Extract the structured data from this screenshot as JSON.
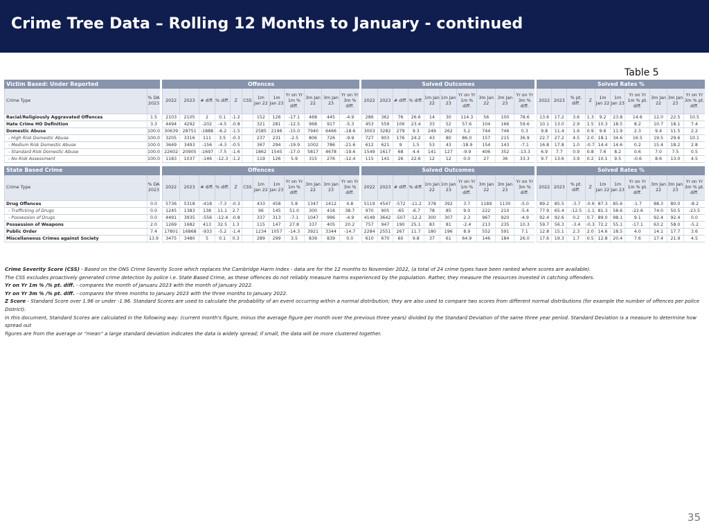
{
  "title": "Crime Tree Data – Rolling 12 Months to January - continued",
  "table_label": "Table 5",
  "page_number": "35",
  "group_headers": {
    "offences": "Offences",
    "solved_outcomes": "Solved Outcomes",
    "solved_rates": "Solved Rates %"
  },
  "headers": {
    "crime_type": "Crime Type",
    "pct_da": "% DA 2023",
    "offences": [
      "2022",
      "2023",
      "# diff.",
      "% diff.",
      "Z",
      "CSS",
      "1m Jan 22",
      "1m Jan 23",
      "Yr on Yr 1m % diff.",
      "3m Jan 22",
      "3m Jan 23",
      "Yr on Yr 3m % diff."
    ],
    "solved": [
      "2022",
      "2023",
      "# diff.",
      "% diff.",
      "1m Jan 22",
      "1m Jan 23",
      "Yr on Yr 1m % diff.",
      "3m Jan 22",
      "3m Jan 23",
      "Yr on Yr 3m % diff."
    ],
    "rates": [
      "2022",
      "2023",
      "% pt. diff.",
      "Z",
      "1m Jan 22",
      "1m Jan 23",
      "Yr on Yr 1m % pt. diff.",
      "3m Jan 22",
      "3m Jan 23",
      "Yr on Yr 3m % pt. diff."
    ]
  },
  "sections": [
    {
      "name": "Victim Based: Under Reported",
      "rows": [
        {
          "label": "Racial/Religiously Aggravated Offences",
          "style": "bold",
          "cells": [
            "1.5",
            "2103",
            "2105",
            "2",
            "0.1",
            "-1.2",
            "",
            "152",
            "126",
            "-17.1",
            "468",
            "445",
            "-4.9",
            "286",
            "362",
            "76",
            "26.6",
            "14",
            "30",
            "114.3",
            "56",
            "100",
            "78.6",
            "13.6",
            "17.2",
            "3.6",
            "1.3",
            "9.2",
            "23.8",
            "14.6",
            "12.0",
            "22.5",
            "10.5"
          ]
        },
        {
          "label": "Hate Crime HO Definition",
          "style": "bold",
          "cells": [
            "3.3",
            "4494",
            "4292",
            "-202",
            "-4.5",
            "-0.8",
            "",
            "321",
            "281",
            "-12.5",
            "968",
            "917",
            "-5.3",
            "453",
            "559",
            "106",
            "23.4",
            "33",
            "52",
            "57.6",
            "104",
            "166",
            "59.6",
            "10.1",
            "13.0",
            "2.9",
            "1.5",
            "10.3",
            "18.5",
            "8.2",
            "10.7",
            "18.1",
            "7.4"
          ]
        },
        {
          "label": "Domestic Abuse",
          "style": "bold",
          "cells": [
            "100.0",
            "30639",
            "28751",
            "-1888",
            "-6.2",
            "-1.5",
            "",
            "2585",
            "2196",
            "-15.0",
            "7940",
            "6466",
            "-18.6",
            "3003",
            "3282",
            "279",
            "9.3",
            "249",
            "262",
            "5.2",
            "744",
            "746",
            "0.3",
            "9.8",
            "11.4",
            "1.6",
            "0.9",
            "9.6",
            "11.9",
            "2.3",
            "9.4",
            "11.5",
            "2.2"
          ]
        },
        {
          "label": "- High Risk Domestic Abuse",
          "style": "sub",
          "cells": [
            "100.0",
            "3205",
            "3316",
            "111",
            "3.5",
            "-0.3",
            "",
            "237",
            "231",
            "-2.5",
            "806",
            "726",
            "-9.9",
            "727",
            "903",
            "176",
            "24.2",
            "43",
            "80",
            "86.0",
            "157",
            "215",
            "36.9",
            "22.7",
            "27.2",
            "4.5",
            "2.0",
            "18.1",
            "34.6",
            "16.5",
            "19.5",
            "29.6",
            "10.1"
          ]
        },
        {
          "label": "- Medium Risk Domestic Abuse",
          "style": "sub",
          "cells": [
            "100.0",
            "3649",
            "3493",
            "-156",
            "-4.3",
            "-0.5",
            "",
            "367",
            "294",
            "-19.9",
            "1002",
            "786",
            "-21.6",
            "612",
            "621",
            "9",
            "1.5",
            "53",
            "43",
            "-18.9",
            "154",
            "143",
            "-7.1",
            "16.8",
            "17.8",
            "1.0",
            "-0.7",
            "14.4",
            "14.6",
            "0.2",
            "15.4",
            "18.2",
            "2.8"
          ]
        },
        {
          "label": "- Standard Risk Domestic Abuse",
          "style": "sub",
          "cells": [
            "100.0",
            "22602",
            "20905",
            "-1697",
            "-7.5",
            "-1.6",
            "",
            "1862",
            "1545",
            "-17.0",
            "5817",
            "4678",
            "-19.6",
            "1549",
            "1617",
            "68",
            "4.4",
            "141",
            "127",
            "-9.9",
            "406",
            "352",
            "-13.3",
            "6.9",
            "7.7",
            "0.9",
            "0.8",
            "7.6",
            "8.2",
            "0.6",
            "7.0",
            "7.5",
            "0.5"
          ]
        },
        {
          "label": "- No Risk Assessment",
          "style": "sub",
          "cells": [
            "100.0",
            "1183",
            "1037",
            "-146",
            "-12.3",
            "-1.2",
            "",
            "119",
            "126",
            "5.9",
            "315",
            "276",
            "-12.4",
            "115",
            "141",
            "26",
            "22.6",
            "12",
            "12",
            "0.0",
            "27",
            "36",
            "33.3",
            "9.7",
            "13.6",
            "3.9",
            "0.2",
            "10.1",
            "9.5",
            "-0.6",
            "8.6",
            "13.0",
            "4.5"
          ]
        }
      ]
    },
    {
      "name": "State Based Crime",
      "rows": [
        {
          "label": "Drug Offences",
          "style": "bold",
          "cells": [
            "0.0",
            "5736",
            "5318",
            "-418",
            "-7.3",
            "-0.3",
            "",
            "433",
            "458",
            "5.8",
            "1347",
            "1412",
            "4.8",
            "5119",
            "4547",
            "-572",
            "-11.2",
            "378",
            "392",
            "3.7",
            "1189",
            "1130",
            "-5.0",
            "89.2",
            "85.5",
            "-3.7",
            "-0.6",
            "87.3",
            "85.6",
            "-1.7",
            "88.3",
            "80.0",
            "-8.2"
          ]
        },
        {
          "label": "- Trafficking of Drugs",
          "style": "sub",
          "cells": [
            "0.0",
            "1245",
            "1383",
            "138",
            "11.1",
            "2.7",
            "",
            "96",
            "145",
            "51.0",
            "300",
            "416",
            "38.7",
            "970",
            "905",
            "-65",
            "-6.7",
            "78",
            "85",
            "9.0",
            "222",
            "210",
            "-5.4",
            "77.9",
            "65.4",
            "-12.5",
            "-1.1",
            "81.3",
            "58.6",
            "-22.6",
            "74.0",
            "50.5",
            "-23.5"
          ]
        },
        {
          "label": "- Possession of Drugs",
          "style": "sub",
          "cells": [
            "0.0",
            "4491",
            "3935",
            "-556",
            "-12.4",
            "-0.8",
            "",
            "337",
            "313",
            "-7.1",
            "1047",
            "996",
            "-4.9",
            "4149",
            "3642",
            "-507",
            "-12.2",
            "300",
            "307",
            "2.3",
            "967",
            "920",
            "-4.9",
            "92.4",
            "92.6",
            "0.2",
            "0.7",
            "89.0",
            "98.1",
            "9.1",
            "92.4",
            "92.4",
            "0.0"
          ]
        },
        {
          "label": "Possession of Weapons",
          "style": "bold",
          "cells": [
            "2.0",
            "1269",
            "1682",
            "413",
            "32.5",
            "1.3",
            "",
            "115",
            "147",
            "27.8",
            "337",
            "405",
            "20.2",
            "757",
            "947",
            "190",
            "25.1",
            "83",
            "81",
            "-2.4",
            "213",
            "235",
            "10.3",
            "59.7",
            "56.3",
            "-3.4",
            "-0.3",
            "72.2",
            "55.1",
            "-17.1",
            "63.2",
            "58.0",
            "-5.2"
          ]
        },
        {
          "label": "Public Order",
          "style": "bold",
          "cells": [
            "7.4",
            "17801",
            "16868",
            "-933",
            "-5.2",
            "-1.4",
            "",
            "1234",
            "1057",
            "-14.3",
            "3921",
            "3344",
            "-14.7",
            "2284",
            "2551",
            "267",
            "11.7",
            "180",
            "196",
            "8.9",
            "552",
            "591",
            "7.1",
            "12.8",
            "15.1",
            "2.3",
            "2.0",
            "14.6",
            "18.5",
            "4.0",
            "14.1",
            "17.7",
            "3.6"
          ]
        },
        {
          "label": "Miscellaneous Crimes against Society",
          "style": "bold",
          "cells": [
            "13.9",
            "3475",
            "3480",
            "5",
            "0.1",
            "0.3",
            "",
            "289",
            "299",
            "3.5",
            "839",
            "839",
            "0.0",
            "610",
            "670",
            "60",
            "9.8",
            "37",
            "61",
            "64.9",
            "146",
            "184",
            "26.0",
            "17.6",
            "19.3",
            "1.7",
            "0.5",
            "12.8",
            "20.4",
            "7.6",
            "17.4",
            "21.9",
            "4.5"
          ]
        }
      ]
    }
  ],
  "notes": {
    "css_term": "Crime Severity Score (CSS)",
    "css_text": " - Based on the ONS Crime Severity Score which replaces the Cambridge Harm Index - data are for the 12 months to November 2022, (a total of 24 crime types have been ranked where scores are available).",
    "css_line2": "The CSS excludes proactively generated crime detection by police i.e. State Based Crime, as these offences do not reliably measure harms experienced by the population. Rather, they measure the resources invested in catching offenders.",
    "yoy1m_term": "Yr on Yr 1m % /% pt. diff.",
    "yoy1m_text": " - compares the month of Januaru 2023 with the month of January 2022.",
    "yoy3m_term": "Yr on Yr 3m % /% pt. diff.",
    "yoy3m_text": " - compares the three months to January 2023 with the three months to January 2022.",
    "z_term": "Z Score",
    "z_text": " - Standard Score over 1.96 or under -1.96.  Standard Scores are used to calculate the probability of an event occurring within a normal distribution; they are also used to compare two scores from different normal distributions (for example the number of offences per police District).",
    "z_line2": "In this document, Standard Scores are calculated in the following way: (current month's figure, minus the average figure per month over the previous three years) divided by the Standard Deviation of the same three year period.  Standard Deviation is a measure to determine how spread out",
    "z_line3": "figures are from the average or “mean” a large standard deviation indicates the data is widely spread; if small, the data will be more clustered together."
  }
}
